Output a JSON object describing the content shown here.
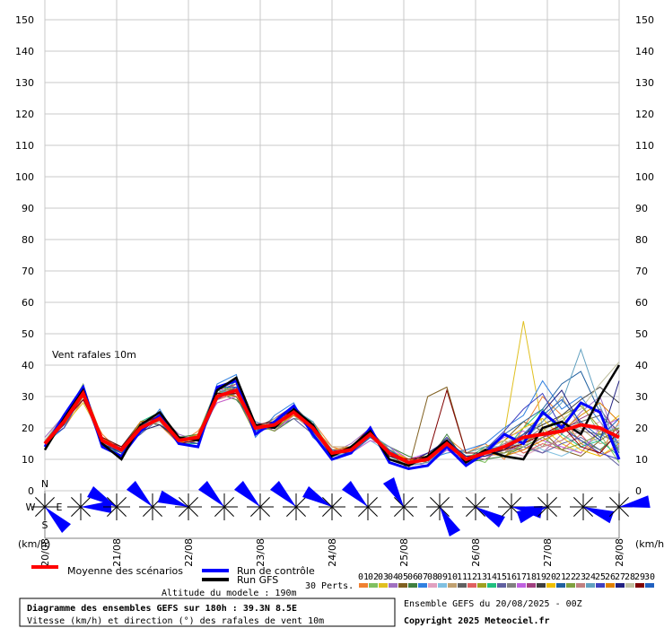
{
  "chart_data": {
    "type": "line",
    "annotation": "Vent rafales 10m",
    "y_unit": "(km/h)",
    "x": [
      0,
      6,
      12,
      18,
      24,
      30,
      36,
      42,
      48,
      54,
      60,
      66,
      72,
      78,
      84,
      90,
      96,
      102,
      108,
      114,
      120,
      126,
      132,
      138,
      144,
      150,
      156,
      162,
      168,
      174,
      180
    ],
    "xlim": [
      0,
      180
    ],
    "xticks": [
      {
        "value": 0,
        "label": "20/08"
      },
      {
        "value": 22.5,
        "label": "21/08"
      },
      {
        "value": 45,
        "label": "22/08"
      },
      {
        "value": 67.5,
        "label": "23/08"
      },
      {
        "value": 90,
        "label": "24/08"
      },
      {
        "value": 112.5,
        "label": "25/08"
      },
      {
        "value": 135,
        "label": "26/08"
      },
      {
        "value": 157.5,
        "label": "27/08"
      },
      {
        "value": 180,
        "label": "28/08"
      }
    ],
    "ylim": [
      0,
      150
    ],
    "yticks": [
      0,
      10,
      20,
      30,
      40,
      50,
      60,
      70,
      80,
      90,
      100,
      110,
      120,
      130,
      140,
      150
    ],
    "grid": true,
    "series": [
      {
        "name": "01",
        "color": "#f08030",
        "values": [
          16,
          20,
          29,
          18,
          12,
          22,
          21,
          15,
          19,
          28,
          30,
          22,
          19,
          24,
          22,
          14,
          12,
          16,
          14,
          10,
          9,
          17,
          12,
          15,
          10,
          20,
          30,
          24,
          15,
          12,
          22
        ]
      },
      {
        "name": "02",
        "color": "#80c060",
        "values": [
          14,
          23,
          34,
          15,
          14,
          18,
          25,
          17,
          15,
          31,
          34,
          19,
          23,
          26,
          19,
          11,
          14,
          19,
          11,
          8,
          12,
          14,
          11,
          9,
          16,
          12,
          14,
          22,
          28,
          18,
          9
        ]
      },
      {
        "name": "03",
        "color": "#e0c020",
        "values": [
          15,
          21,
          28,
          17,
          12,
          21,
          22,
          16,
          18,
          29,
          31,
          21,
          20,
          24,
          21,
          13,
          12,
          17,
          13,
          10,
          11,
          16,
          9,
          13,
          18,
          54,
          20,
          15,
          12,
          19,
          24
        ]
      },
      {
        "name": "04",
        "color": "#a070c0",
        "values": [
          17,
          24,
          32,
          14,
          13,
          19,
          24,
          18,
          16,
          33,
          30,
          18,
          22,
          27,
          18,
          12,
          15,
          20,
          10,
          9,
          8,
          13,
          10,
          11,
          12,
          15,
          12,
          18,
          25,
          30,
          14
        ]
      },
      {
        "name": "05",
        "color": "#806020",
        "values": [
          13,
          22,
          30,
          16,
          11,
          20,
          23,
          15,
          17,
          30,
          33,
          20,
          21,
          25,
          20,
          12,
          13,
          18,
          12,
          7,
          30,
          33,
          12,
          14,
          16,
          22,
          19,
          13,
          11,
          16,
          20
        ]
      },
      {
        "name": "06",
        "color": "#408040",
        "values": [
          16,
          23,
          33,
          15,
          12,
          22,
          21,
          17,
          18,
          31,
          29,
          22,
          19,
          23,
          22,
          11,
          12,
          17,
          14,
          11,
          9,
          18,
          9,
          10,
          11,
          14,
          17,
          21,
          16,
          13,
          18
        ]
      },
      {
        "name": "07",
        "color": "#3080e0",
        "values": [
          15,
          20,
          31,
          17,
          14,
          18,
          26,
          16,
          15,
          34,
          37,
          17,
          24,
          28,
          17,
          12,
          14,
          19,
          11,
          9,
          10,
          12,
          13,
          15,
          20,
          24,
          35,
          26,
          30,
          22,
          15
        ]
      },
      {
        "name": "08",
        "color": "#e0a0c0",
        "values": [
          14,
          22,
          30,
          16,
          13,
          21,
          22,
          15,
          17,
          29,
          32,
          20,
          22,
          26,
          19,
          13,
          13,
          18,
          13,
          10,
          11,
          15,
          10,
          12,
          13,
          11,
          14,
          16,
          19,
          22,
          12
        ]
      },
      {
        "name": "09",
        "color": "#80c0e0",
        "values": [
          16,
          21,
          32,
          15,
          12,
          20,
          24,
          17,
          16,
          32,
          31,
          21,
          20,
          24,
          21,
          12,
          12,
          16,
          12,
          8,
          10,
          16,
          11,
          12,
          15,
          17,
          13,
          11,
          14,
          17,
          21
        ]
      },
      {
        "name": "10",
        "color": "#c0a070",
        "values": [
          15,
          23,
          29,
          17,
          14,
          19,
          23,
          16,
          18,
          30,
          34,
          19,
          21,
          25,
          20,
          14,
          14,
          20,
          11,
          9,
          12,
          14,
          8,
          14,
          12,
          18,
          22,
          30,
          20,
          15,
          16
        ]
      },
      {
        "name": "11",
        "color": "#606060",
        "values": [
          14,
          22,
          31,
          16,
          13,
          20,
          22,
          15,
          17,
          31,
          33,
          20,
          23,
          27,
          21,
          12,
          13,
          18,
          12,
          9,
          10,
          15,
          10,
          11,
          14,
          16,
          18,
          20,
          22,
          24,
          19
        ]
      },
      {
        "name": "12",
        "color": "#e06060",
        "values": [
          15,
          24,
          30,
          15,
          12,
          21,
          24,
          17,
          16,
          29,
          31,
          22,
          19,
          24,
          20,
          11,
          14,
          19,
          13,
          10,
          11,
          16,
          9,
          13,
          16,
          12,
          15,
          13,
          18,
          11,
          14
        ]
      },
      {
        "name": "13",
        "color": "#a0a020",
        "values": [
          16,
          21,
          33,
          17,
          13,
          19,
          21,
          16,
          18,
          32,
          30,
          18,
          22,
          26,
          19,
          13,
          12,
          17,
          12,
          8,
          9,
          14,
          12,
          12,
          11,
          15,
          19,
          24,
          27,
          20,
          13
        ]
      },
      {
        "name": "14",
        "color": "#20c080",
        "values": [
          13,
          22,
          32,
          16,
          11,
          22,
          25,
          15,
          15,
          30,
          35,
          21,
          21,
          25,
          22,
          12,
          13,
          18,
          11,
          10,
          10,
          17,
          10,
          14,
          13,
          20,
          26,
          18,
          14,
          16,
          11
        ]
      },
      {
        "name": "15",
        "color": "#6060a0",
        "values": [
          15,
          23,
          30,
          14,
          14,
          18,
          23,
          17,
          17,
          33,
          32,
          19,
          20,
          23,
          18,
          11,
          13,
          17,
          13,
          9,
          11,
          15,
          11,
          11,
          15,
          14,
          12,
          15,
          17,
          13,
          8
        ]
      },
      {
        "name": "16",
        "color": "#808080",
        "values": [
          16,
          20,
          31,
          16,
          12,
          21,
          22,
          16,
          16,
          31,
          33,
          20,
          22,
          26,
          21,
          12,
          14,
          19,
          12,
          9,
          10,
          16,
          10,
          12,
          12,
          16,
          20,
          22,
          19,
          18,
          15
        ]
      },
      {
        "name": "17",
        "color": "#c060e0",
        "values": [
          14,
          22,
          29,
          17,
          13,
          20,
          24,
          15,
          18,
          28,
          30,
          22,
          19,
          24,
          20,
          13,
          12,
          16,
          14,
          10,
          12,
          13,
          9,
          13,
          17,
          19,
          16,
          14,
          12,
          20,
          23
        ]
      },
      {
        "name": "18",
        "color": "#a04080",
        "values": [
          15,
          23,
          32,
          15,
          12,
          19,
          23,
          17,
          17,
          32,
          34,
          18,
          23,
          27,
          19,
          12,
          13,
          18,
          12,
          8,
          9,
          15,
          11,
          10,
          14,
          13,
          17,
          19,
          23,
          26,
          18
        ]
      },
      {
        "name": "19",
        "color": "#404040",
        "values": [
          16,
          21,
          30,
          16,
          14,
          22,
          21,
          16,
          15,
          30,
          31,
          21,
          21,
          25,
          21,
          11,
          14,
          20,
          11,
          9,
          11,
          17,
          10,
          12,
          13,
          18,
          21,
          24,
          29,
          33,
          28
        ]
      },
      {
        "name": "20",
        "color": "#f0c000",
        "values": [
          14,
          24,
          31,
          17,
          13,
          20,
          24,
          15,
          17,
          29,
          33,
          20,
          20,
          24,
          20,
          13,
          13,
          17,
          13,
          10,
          10,
          14,
          12,
          14,
          16,
          20,
          23,
          17,
          13,
          11,
          15
        ]
      },
      {
        "name": "21",
        "color": "#2060a0",
        "values": [
          15,
          22,
          33,
          15,
          11,
          21,
          22,
          17,
          16,
          31,
          30,
          19,
          22,
          26,
          20,
          12,
          12,
          18,
          12,
          9,
          12,
          16,
          9,
          13,
          18,
          22,
          26,
          34,
          38,
          25,
          12
        ]
      },
      {
        "name": "22",
        "color": "#80a040",
        "values": [
          16,
          21,
          30,
          16,
          12,
          20,
          23,
          16,
          18,
          33,
          32,
          21,
          19,
          25,
          21,
          12,
          14,
          19,
          13,
          9,
          10,
          15,
          11,
          12,
          12,
          14,
          17,
          13,
          15,
          18,
          20
        ]
      },
      {
        "name": "23",
        "color": "#c08080",
        "values": [
          13,
          23,
          29,
          17,
          13,
          19,
          25,
          15,
          16,
          30,
          34,
          20,
          21,
          24,
          19,
          13,
          13,
          17,
          12,
          10,
          11,
          16,
          10,
          11,
          15,
          18,
          14,
          16,
          21,
          19,
          17
        ]
      },
      {
        "name": "24",
        "color": "#60a0c0",
        "values": [
          15,
          22,
          32,
          15,
          14,
          21,
          22,
          17,
          17,
          32,
          31,
          22,
          20,
          26,
          22,
          11,
          12,
          18,
          14,
          8,
          9,
          14,
          12,
          14,
          14,
          16,
          22,
          28,
          45,
          27,
          13
        ]
      },
      {
        "name": "25",
        "color": "#4040c0",
        "values": [
          16,
          20,
          31,
          16,
          12,
          20,
          24,
          16,
          15,
          29,
          33,
          19,
          22,
          25,
          20,
          12,
          13,
          19,
          11,
          9,
          10,
          17,
          9,
          13,
          19,
          26,
          31,
          20,
          16,
          12,
          10
        ]
      },
      {
        "name": "26",
        "color": "#e08000",
        "values": [
          14,
          23,
          30,
          17,
          13,
          22,
          23,
          15,
          18,
          31,
          30,
          21,
          21,
          24,
          21,
          13,
          14,
          18,
          12,
          10,
          11,
          15,
          10,
          12,
          11,
          13,
          16,
          19,
          24,
          28,
          22
        ]
      },
      {
        "name": "27",
        "color": "#202080",
        "values": [
          15,
          21,
          33,
          15,
          12,
          19,
          21,
          17,
          16,
          32,
          35,
          20,
          20,
          27,
          19,
          12,
          12,
          17,
          13,
          9,
          12,
          16,
          11,
          11,
          13,
          17,
          25,
          32,
          21,
          16,
          35
        ]
      },
      {
        "name": "28",
        "color": "#c0c0a0",
        "values": [
          16,
          24,
          31,
          16,
          13,
          20,
          22,
          16,
          17,
          30,
          32,
          18,
          23,
          25,
          20,
          11,
          13,
          18,
          12,
          8,
          10,
          14,
          10,
          13,
          16,
          14,
          19,
          23,
          26,
          34,
          41
        ]
      },
      {
        "name": "29",
        "color": "#800000",
        "values": [
          14,
          22,
          29,
          17,
          14,
          21,
          24,
          15,
          16,
          31,
          31,
          21,
          22,
          26,
          21,
          12,
          14,
          20,
          11,
          10,
          11,
          32,
          12,
          12,
          13,
          15,
          18,
          21,
          14,
          12,
          19
        ]
      },
      {
        "name": "30",
        "color": "#2060c0",
        "values": [
          15,
          23,
          32,
          16,
          12,
          21,
          23,
          16,
          17,
          33,
          33,
          19,
          21,
          25,
          20,
          13,
          12,
          17,
          13,
          9,
          10,
          15,
          10,
          13,
          14,
          18,
          24,
          29,
          22,
          17,
          23
        ]
      },
      {
        "name": "Run de contrôle",
        "color": "#0000ff",
        "values": [
          14,
          24,
          33,
          14,
          11,
          19,
          24,
          15,
          14,
          33,
          35,
          18,
          22,
          27,
          18,
          10,
          12,
          20,
          9,
          7,
          8,
          14,
          8,
          12,
          18,
          15,
          25,
          20,
          28,
          25,
          10
        ]
      },
      {
        "name": "Run GFS",
        "color": "#000000",
        "values": [
          13,
          23,
          32,
          15,
          10,
          21,
          25,
          17,
          16,
          32,
          36,
          21,
          20,
          26,
          21,
          11,
          14,
          19,
          10,
          8,
          11,
          16,
          9,
          13,
          11,
          10,
          20,
          22,
          18,
          30,
          40
        ]
      },
      {
        "name": "Moyenne des scénarios",
        "color": "#ff0000",
        "values": [
          15,
          22,
          31,
          16,
          13,
          20,
          23,
          16,
          17,
          30,
          32,
          20,
          21,
          25,
          20,
          12,
          13,
          18,
          12,
          9,
          10,
          15,
          10,
          12,
          14,
          17,
          18,
          19,
          21,
          20,
          17
        ]
      }
    ],
    "wind_direction": [
      135,
      90,
      300,
      315,
      290,
      315,
      315,
      315,
      300,
      315,
      330,
      150,
      120,
      100,
      250,
      110,
      80
    ],
    "compass": [
      "N",
      "W",
      "E",
      "S"
    ],
    "perturbations_label": "30 Perts.",
    "altitude": "Altitude du modele : 190m",
    "box_title": "Diagramme des ensembles GEFS sur 180h : 39.3N 8.5E",
    "box_subtitle": "Vitesse (km/h) et direction (°) des rafales de vent 10m",
    "run_info": "Ensemble GEFS du 20/08/2025 - 00Z",
    "copyright": "Copyright 2025 Meteociel.fr"
  }
}
